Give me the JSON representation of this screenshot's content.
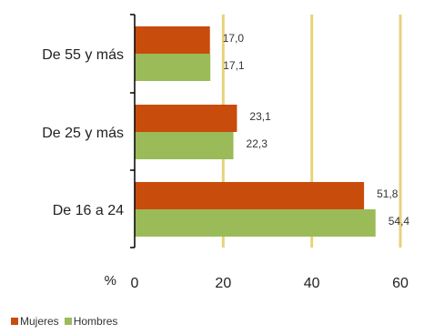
{
  "chart_data": {
    "type": "bar",
    "orientation": "horizontal",
    "categories": [
      "De 55 y más",
      "De 25 y más",
      "De 16 a 24"
    ],
    "series": [
      {
        "name": "Mujeres",
        "color": "#c84c0c",
        "values": [
          17.0,
          23.1,
          51.8
        ],
        "labels": [
          "17,0",
          "23,1",
          "51,8"
        ]
      },
      {
        "name": "Hombres",
        "color": "#9bbb59",
        "values": [
          17.1,
          22.3,
          54.4
        ],
        "labels": [
          "17,1",
          "22,3",
          "54,4"
        ]
      }
    ],
    "xlim": [
      0,
      60
    ],
    "xticks": [
      0,
      20,
      40,
      60
    ],
    "xticks_labels": [
      "0",
      "20",
      "40",
      "60"
    ],
    "unit_label": "%",
    "gridline_color": "#e8d27a",
    "legend_position": "bottom-left"
  }
}
